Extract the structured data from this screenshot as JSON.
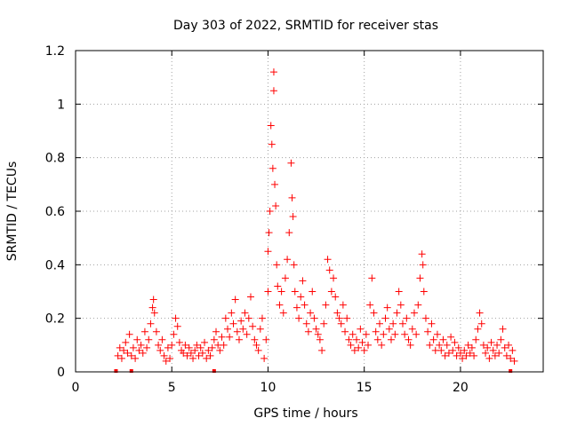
{
  "chart_data": {
    "type": "scatter",
    "title": "Day 303 of 2022, SRMTID for receiver stas",
    "xlabel": "GPS time / hours",
    "ylabel": "SRMTID / TECUs",
    "xlim": [
      0,
      24.3
    ],
    "ylim": [
      0,
      1.2
    ],
    "x_ticks": [
      "0",
      "5",
      "10",
      "15",
      "20"
    ],
    "x_tick_values": [
      0,
      5,
      10,
      15,
      20
    ],
    "y_ticks": [
      "0",
      "0.2",
      "0.4",
      "0.6",
      "0.8",
      "1",
      "1.2"
    ],
    "y_tick_values": [
      0,
      0.2,
      0.4,
      0.6,
      0.8,
      1.0,
      1.2
    ],
    "grid": true,
    "series": [
      {
        "name": "SRMTID",
        "color": "#ff0000",
        "marker": "plus",
        "points": [
          [
            2.2,
            0.06
          ],
          [
            2.3,
            0.09
          ],
          [
            2.4,
            0.05
          ],
          [
            2.5,
            0.08
          ],
          [
            2.6,
            0.11
          ],
          [
            2.7,
            0.07
          ],
          [
            2.8,
            0.14
          ],
          [
            2.9,
            0.06
          ],
          [
            3.0,
            0.09
          ],
          [
            3.1,
            0.05
          ],
          [
            3.2,
            0.12
          ],
          [
            3.3,
            0.08
          ],
          [
            3.4,
            0.1
          ],
          [
            3.5,
            0.07
          ],
          [
            3.6,
            0.15
          ],
          [
            3.7,
            0.09
          ],
          [
            3.8,
            0.12
          ],
          [
            3.9,
            0.18
          ],
          [
            4.0,
            0.24
          ],
          [
            4.05,
            0.27
          ],
          [
            4.1,
            0.22
          ],
          [
            4.2,
            0.15
          ],
          [
            4.3,
            0.1
          ],
          [
            4.4,
            0.08
          ],
          [
            4.5,
            0.12
          ],
          [
            4.6,
            0.06
          ],
          [
            4.7,
            0.04
          ],
          [
            4.8,
            0.09
          ],
          [
            4.9,
            0.05
          ],
          [
            5.0,
            0.1
          ],
          [
            5.1,
            0.14
          ],
          [
            5.2,
            0.2
          ],
          [
            5.3,
            0.17
          ],
          [
            5.4,
            0.11
          ],
          [
            5.5,
            0.08
          ],
          [
            5.6,
            0.07
          ],
          [
            5.7,
            0.1
          ],
          [
            5.8,
            0.06
          ],
          [
            5.9,
            0.09
          ],
          [
            6.0,
            0.07
          ],
          [
            6.1,
            0.05
          ],
          [
            6.2,
            0.08
          ],
          [
            6.3,
            0.1
          ],
          [
            6.4,
            0.06
          ],
          [
            6.5,
            0.09
          ],
          [
            6.6,
            0.07
          ],
          [
            6.7,
            0.11
          ],
          [
            6.8,
            0.05
          ],
          [
            6.9,
            0.08
          ],
          [
            7.0,
            0.06
          ],
          [
            7.1,
            0.09
          ],
          [
            7.2,
            0.12
          ],
          [
            7.3,
            0.15
          ],
          [
            7.4,
            0.1
          ],
          [
            7.5,
            0.08
          ],
          [
            7.6,
            0.13
          ],
          [
            7.7,
            0.1
          ],
          [
            7.8,
            0.2
          ],
          [
            7.9,
            0.16
          ],
          [
            8.0,
            0.13
          ],
          [
            8.1,
            0.22
          ],
          [
            8.2,
            0.18
          ],
          [
            8.3,
            0.27
          ],
          [
            8.4,
            0.15
          ],
          [
            8.5,
            0.12
          ],
          [
            8.6,
            0.19
          ],
          [
            8.7,
            0.16
          ],
          [
            8.8,
            0.22
          ],
          [
            8.9,
            0.14
          ],
          [
            9.0,
            0.2
          ],
          [
            9.1,
            0.28
          ],
          [
            9.2,
            0.17
          ],
          [
            9.3,
            0.12
          ],
          [
            9.4,
            0.1
          ],
          [
            9.5,
            0.08
          ],
          [
            9.6,
            0.16
          ],
          [
            9.7,
            0.2
          ],
          [
            9.8,
            0.05
          ],
          [
            9.9,
            0.12
          ],
          [
            10.0,
            0.3
          ],
          [
            10.0,
            0.45
          ],
          [
            10.05,
            0.52
          ],
          [
            10.1,
            0.6
          ],
          [
            10.15,
            0.92
          ],
          [
            10.2,
            0.85
          ],
          [
            10.25,
            0.76
          ],
          [
            10.3,
            1.12
          ],
          [
            10.3,
            1.05
          ],
          [
            10.35,
            0.7
          ],
          [
            10.4,
            0.62
          ],
          [
            10.45,
            0.4
          ],
          [
            10.5,
            0.32
          ],
          [
            10.6,
            0.25
          ],
          [
            10.7,
            0.3
          ],
          [
            10.8,
            0.22
          ],
          [
            10.9,
            0.35
          ],
          [
            11.0,
            0.42
          ],
          [
            11.1,
            0.52
          ],
          [
            11.2,
            0.78
          ],
          [
            11.25,
            0.65
          ],
          [
            11.3,
            0.58
          ],
          [
            11.35,
            0.4
          ],
          [
            11.4,
            0.3
          ],
          [
            11.5,
            0.24
          ],
          [
            11.6,
            0.2
          ],
          [
            11.7,
            0.28
          ],
          [
            11.8,
            0.34
          ],
          [
            11.9,
            0.25
          ],
          [
            12.0,
            0.18
          ],
          [
            12.1,
            0.15
          ],
          [
            12.2,
            0.22
          ],
          [
            12.3,
            0.3
          ],
          [
            12.4,
            0.2
          ],
          [
            12.5,
            0.16
          ],
          [
            12.6,
            0.14
          ],
          [
            12.7,
            0.12
          ],
          [
            12.8,
            0.08
          ],
          [
            12.9,
            0.18
          ],
          [
            13.0,
            0.25
          ],
          [
            13.1,
            0.42
          ],
          [
            13.2,
            0.38
          ],
          [
            13.3,
            0.3
          ],
          [
            13.4,
            0.35
          ],
          [
            13.5,
            0.28
          ],
          [
            13.6,
            0.22
          ],
          [
            13.7,
            0.2
          ],
          [
            13.8,
            0.18
          ],
          [
            13.9,
            0.25
          ],
          [
            14.0,
            0.15
          ],
          [
            14.1,
            0.2
          ],
          [
            14.2,
            0.12
          ],
          [
            14.3,
            0.1
          ],
          [
            14.4,
            0.14
          ],
          [
            14.5,
            0.08
          ],
          [
            14.6,
            0.12
          ],
          [
            14.7,
            0.09
          ],
          [
            14.8,
            0.16
          ],
          [
            14.9,
            0.11
          ],
          [
            15.0,
            0.08
          ],
          [
            15.1,
            0.14
          ],
          [
            15.2,
            0.1
          ],
          [
            15.3,
            0.25
          ],
          [
            15.4,
            0.35
          ],
          [
            15.5,
            0.22
          ],
          [
            15.6,
            0.15
          ],
          [
            15.7,
            0.12
          ],
          [
            15.8,
            0.18
          ],
          [
            15.9,
            0.1
          ],
          [
            16.0,
            0.14
          ],
          [
            16.1,
            0.2
          ],
          [
            16.2,
            0.24
          ],
          [
            16.3,
            0.16
          ],
          [
            16.4,
            0.12
          ],
          [
            16.5,
            0.18
          ],
          [
            16.6,
            0.14
          ],
          [
            16.7,
            0.22
          ],
          [
            16.8,
            0.3
          ],
          [
            16.9,
            0.25
          ],
          [
            17.0,
            0.18
          ],
          [
            17.1,
            0.14
          ],
          [
            17.2,
            0.2
          ],
          [
            17.3,
            0.12
          ],
          [
            17.4,
            0.1
          ],
          [
            17.5,
            0.16
          ],
          [
            17.6,
            0.22
          ],
          [
            17.7,
            0.14
          ],
          [
            17.8,
            0.25
          ],
          [
            17.9,
            0.35
          ],
          [
            18.0,
            0.44
          ],
          [
            18.05,
            0.4
          ],
          [
            18.1,
            0.3
          ],
          [
            18.2,
            0.2
          ],
          [
            18.3,
            0.15
          ],
          [
            18.4,
            0.1
          ],
          [
            18.5,
            0.18
          ],
          [
            18.6,
            0.12
          ],
          [
            18.7,
            0.08
          ],
          [
            18.8,
            0.14
          ],
          [
            18.9,
            0.1
          ],
          [
            19.0,
            0.08
          ],
          [
            19.1,
            0.12
          ],
          [
            19.2,
            0.06
          ],
          [
            19.3,
            0.1
          ],
          [
            19.4,
            0.07
          ],
          [
            19.5,
            0.13
          ],
          [
            19.6,
            0.08
          ],
          [
            19.7,
            0.11
          ],
          [
            19.8,
            0.06
          ],
          [
            19.9,
            0.09
          ],
          [
            20.0,
            0.07
          ],
          [
            20.1,
            0.05
          ],
          [
            20.2,
            0.08
          ],
          [
            20.3,
            0.06
          ],
          [
            20.4,
            0.1
          ],
          [
            20.5,
            0.07
          ],
          [
            20.6,
            0.09
          ],
          [
            20.7,
            0.06
          ],
          [
            20.8,
            0.12
          ],
          [
            20.9,
            0.16
          ],
          [
            21.0,
            0.22
          ],
          [
            21.1,
            0.18
          ],
          [
            21.2,
            0.1
          ],
          [
            21.3,
            0.07
          ],
          [
            21.4,
            0.09
          ],
          [
            21.5,
            0.05
          ],
          [
            21.6,
            0.11
          ],
          [
            21.7,
            0.08
          ],
          [
            21.8,
            0.06
          ],
          [
            21.9,
            0.1
          ],
          [
            22.0,
            0.07
          ],
          [
            22.1,
            0.12
          ],
          [
            22.2,
            0.16
          ],
          [
            22.3,
            0.09
          ],
          [
            22.4,
            0.06
          ],
          [
            22.5,
            0.1
          ],
          [
            22.6,
            0.05
          ],
          [
            22.7,
            0.08
          ],
          [
            22.8,
            0.04
          ]
        ]
      }
    ],
    "zero_points": [
      2.1,
      2.9,
      7.2,
      22.6
    ]
  }
}
